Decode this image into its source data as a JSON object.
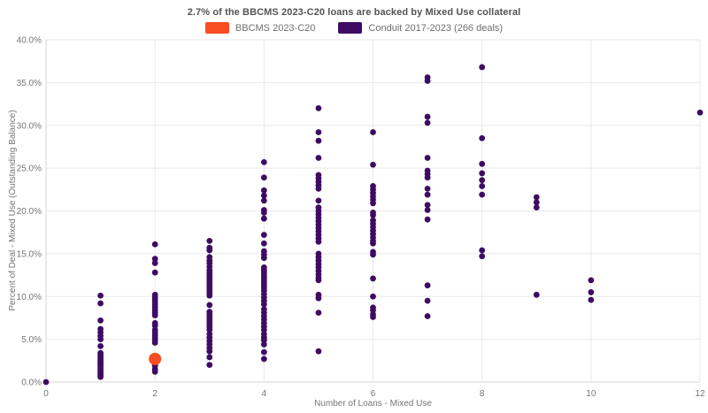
{
  "title": "2.7% of the BBCMS 2023-C20 loans are backed by Mixed Use collateral",
  "chart_data": {
    "type": "scatter",
    "title": "2.7% of the BBCMS 2023-C20 loans are backed by Mixed Use collateral",
    "xlabel": "Number of Loans - Mixed Use",
    "ylabel": "Percent of Deal - Mixed Use (Outstanding Balance)",
    "xlim": [
      0,
      12
    ],
    "ylim": [
      0,
      40
    ],
    "grid": true,
    "legend_position": "top-center",
    "xtick_values": [
      0,
      2,
      4,
      6,
      8,
      10,
      12
    ],
    "xtick_labels": [
      "0",
      "2",
      "4",
      "6",
      "8",
      "10",
      "12"
    ],
    "ytick_values": [
      0,
      5,
      10,
      15,
      20,
      25,
      30,
      35,
      40
    ],
    "ytick_labels": [
      "0.0%",
      "5.0%",
      "10.0%",
      "15.0%",
      "20.0%",
      "25.0%",
      "30.0%",
      "35.0%",
      "40.0%"
    ],
    "series": [
      {
        "id": "bbcms",
        "name": "BBCMS 2023-C20",
        "color": "#fb4d23",
        "marker_radius": 7,
        "points": [
          [
            2,
            2.7
          ]
        ]
      },
      {
        "id": "conduit",
        "name": "Conduit 2017-2023 (266 deals)",
        "color": "#3e0b63",
        "marker_radius": 3.4,
        "points": [
          [
            0,
            0.0
          ],
          [
            1,
            10.1
          ],
          [
            1,
            9.2
          ],
          [
            1,
            7.2
          ],
          [
            1,
            6.2
          ],
          [
            1,
            5.8
          ],
          [
            1,
            5.4
          ],
          [
            1,
            5.0
          ],
          [
            1,
            4.2
          ],
          [
            1,
            3.4
          ],
          [
            1,
            3.2
          ],
          [
            1,
            3.0
          ],
          [
            1,
            2.8
          ],
          [
            1,
            2.6
          ],
          [
            1,
            2.4
          ],
          [
            1,
            2.2
          ],
          [
            1,
            2.0
          ],
          [
            1,
            1.8
          ],
          [
            1,
            1.6
          ],
          [
            1,
            1.4
          ],
          [
            1,
            1.2
          ],
          [
            1,
            1.0
          ],
          [
            1,
            0.8
          ],
          [
            1,
            0.6
          ],
          [
            2,
            16.1
          ],
          [
            2,
            14.4
          ],
          [
            2,
            13.9
          ],
          [
            2,
            12.8
          ],
          [
            2,
            10.2
          ],
          [
            2,
            9.9
          ],
          [
            2,
            9.6
          ],
          [
            2,
            9.3
          ],
          [
            2,
            9.0
          ],
          [
            2,
            8.7
          ],
          [
            2,
            8.4
          ],
          [
            2,
            8.1
          ],
          [
            2,
            7.8
          ],
          [
            2,
            6.9
          ],
          [
            2,
            6.6
          ],
          [
            2,
            6.1
          ],
          [
            2,
            5.8
          ],
          [
            2,
            5.5
          ],
          [
            2,
            5.2
          ],
          [
            2,
            4.9
          ],
          [
            2,
            4.6
          ],
          [
            2,
            3.0
          ],
          [
            2,
            2.6
          ],
          [
            2,
            2.2
          ],
          [
            2,
            1.9
          ],
          [
            2,
            1.5
          ],
          [
            2,
            1.2
          ],
          [
            3,
            16.5
          ],
          [
            3,
            15.7
          ],
          [
            3,
            15.4
          ],
          [
            3,
            14.6
          ],
          [
            3,
            14.2
          ],
          [
            3,
            13.9
          ],
          [
            3,
            13.5
          ],
          [
            3,
            13.1
          ],
          [
            3,
            12.8
          ],
          [
            3,
            12.5
          ],
          [
            3,
            12.2
          ],
          [
            3,
            11.9
          ],
          [
            3,
            11.6
          ],
          [
            3,
            11.3
          ],
          [
            3,
            11.0
          ],
          [
            3,
            10.7
          ],
          [
            3,
            10.4
          ],
          [
            3,
            10.1
          ],
          [
            3,
            9.0
          ],
          [
            3,
            8.2
          ],
          [
            3,
            7.9
          ],
          [
            3,
            7.6
          ],
          [
            3,
            7.3
          ],
          [
            3,
            7.0
          ],
          [
            3,
            6.7
          ],
          [
            3,
            6.4
          ],
          [
            3,
            6.1
          ],
          [
            3,
            5.6
          ],
          [
            3,
            5.2
          ],
          [
            3,
            4.8
          ],
          [
            3,
            4.4
          ],
          [
            3,
            4.0
          ],
          [
            3,
            3.6
          ],
          [
            3,
            2.9
          ],
          [
            3,
            2.0
          ],
          [
            4,
            25.7
          ],
          [
            4,
            23.9
          ],
          [
            4,
            22.4
          ],
          [
            4,
            21.8
          ],
          [
            4,
            21.2
          ],
          [
            4,
            20.1
          ],
          [
            4,
            19.8
          ],
          [
            4,
            19.1
          ],
          [
            4,
            17.2
          ],
          [
            4,
            16.2
          ],
          [
            4,
            15.3
          ],
          [
            4,
            14.9
          ],
          [
            4,
            14.5
          ],
          [
            4,
            13.4
          ],
          [
            4,
            13.1
          ],
          [
            4,
            12.8
          ],
          [
            4,
            12.5
          ],
          [
            4,
            12.2
          ],
          [
            4,
            11.9
          ],
          [
            4,
            11.6
          ],
          [
            4,
            11.3
          ],
          [
            4,
            11.0
          ],
          [
            4,
            10.7
          ],
          [
            4,
            10.3
          ],
          [
            4,
            9.9
          ],
          [
            4,
            9.5
          ],
          [
            4,
            9.1
          ],
          [
            4,
            8.5
          ],
          [
            4,
            8.1
          ],
          [
            4,
            7.7
          ],
          [
            4,
            7.3
          ],
          [
            4,
            6.9
          ],
          [
            4,
            6.5
          ],
          [
            4,
            6.1
          ],
          [
            4,
            5.6
          ],
          [
            4,
            5.2
          ],
          [
            4,
            4.9
          ],
          [
            4,
            4.4
          ],
          [
            4,
            3.5
          ],
          [
            4,
            2.7
          ],
          [
            5,
            32.0
          ],
          [
            5,
            29.2
          ],
          [
            5,
            28.2
          ],
          [
            5,
            26.2
          ],
          [
            5,
            24.2
          ],
          [
            5,
            23.8
          ],
          [
            5,
            23.4
          ],
          [
            5,
            23.0
          ],
          [
            5,
            22.6
          ],
          [
            5,
            21.2
          ],
          [
            5,
            20.4
          ],
          [
            5,
            20.0
          ],
          [
            5,
            19.6
          ],
          [
            5,
            19.2
          ],
          [
            5,
            18.8
          ],
          [
            5,
            18.4
          ],
          [
            5,
            18.0
          ],
          [
            5,
            17.6
          ],
          [
            5,
            17.2
          ],
          [
            5,
            16.8
          ],
          [
            5,
            16.4
          ],
          [
            5,
            15.0
          ],
          [
            5,
            14.6
          ],
          [
            5,
            14.2
          ],
          [
            5,
            13.8
          ],
          [
            5,
            13.4
          ],
          [
            5,
            13.0
          ],
          [
            5,
            12.6
          ],
          [
            5,
            12.2
          ],
          [
            5,
            11.9
          ],
          [
            5,
            10.2
          ],
          [
            5,
            9.8
          ],
          [
            5,
            8.1
          ],
          [
            5,
            3.6
          ],
          [
            6,
            29.2
          ],
          [
            6,
            25.4
          ],
          [
            6,
            22.9
          ],
          [
            6,
            22.5
          ],
          [
            6,
            22.1
          ],
          [
            6,
            21.7
          ],
          [
            6,
            21.3
          ],
          [
            6,
            20.9
          ],
          [
            6,
            19.8
          ],
          [
            6,
            19.5
          ],
          [
            6,
            18.9
          ],
          [
            6,
            18.5
          ],
          [
            6,
            18.1
          ],
          [
            6,
            17.7
          ],
          [
            6,
            17.3
          ],
          [
            6,
            16.9
          ],
          [
            6,
            16.5
          ],
          [
            6,
            16.2
          ],
          [
            6,
            15.2
          ],
          [
            6,
            14.9
          ],
          [
            6,
            12.1
          ],
          [
            6,
            10.0
          ],
          [
            6,
            8.7
          ],
          [
            6,
            8.4
          ],
          [
            6,
            7.9
          ],
          [
            6,
            7.6
          ],
          [
            7,
            35.6
          ],
          [
            7,
            35.2
          ],
          [
            7,
            31.0
          ],
          [
            7,
            30.3
          ],
          [
            7,
            26.2
          ],
          [
            7,
            24.7
          ],
          [
            7,
            24.3
          ],
          [
            7,
            23.9
          ],
          [
            7,
            22.6
          ],
          [
            7,
            21.9
          ],
          [
            7,
            20.7
          ],
          [
            7,
            20.1
          ],
          [
            7,
            19.0
          ],
          [
            7,
            11.3
          ],
          [
            7,
            9.5
          ],
          [
            7,
            7.7
          ],
          [
            8,
            36.8
          ],
          [
            8,
            28.5
          ],
          [
            8,
            25.5
          ],
          [
            8,
            24.4
          ],
          [
            8,
            23.6
          ],
          [
            8,
            22.9
          ],
          [
            8,
            21.9
          ],
          [
            8,
            15.4
          ],
          [
            8,
            14.7
          ],
          [
            9,
            21.6
          ],
          [
            9,
            21.0
          ],
          [
            9,
            20.4
          ],
          [
            9,
            10.2
          ],
          [
            10,
            11.9
          ],
          [
            10,
            10.5
          ],
          [
            10,
            9.6
          ],
          [
            12,
            31.5
          ]
        ]
      }
    ]
  }
}
